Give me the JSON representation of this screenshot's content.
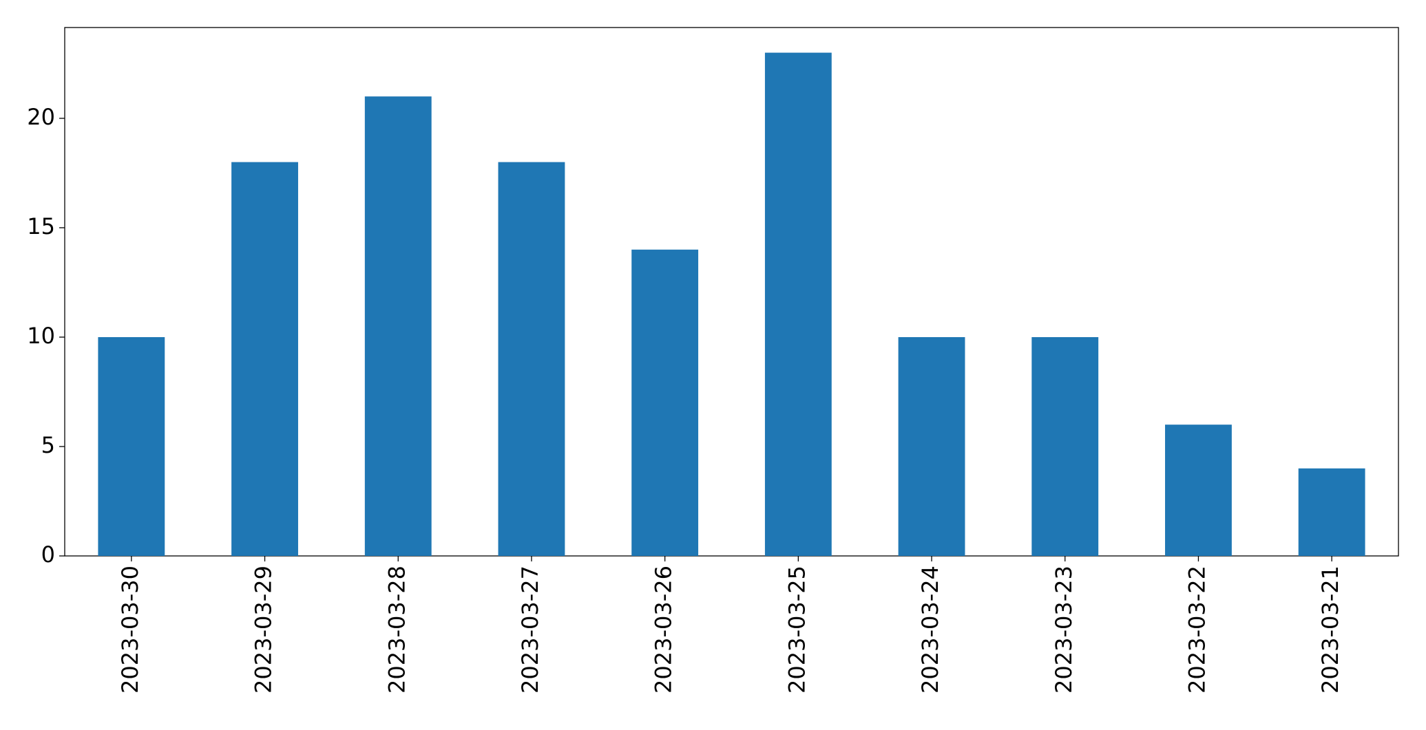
{
  "chart_data": {
    "type": "bar",
    "categories": [
      "2023-03-30",
      "2023-03-29",
      "2023-03-28",
      "2023-03-27",
      "2023-03-26",
      "2023-03-25",
      "2023-03-24",
      "2023-03-23",
      "2023-03-22",
      "2023-03-21"
    ],
    "values": [
      10,
      18,
      21,
      18,
      14,
      23,
      10,
      10,
      6,
      4
    ],
    "color": "#1f77b4",
    "ylim": [
      0,
      24.15
    ],
    "yticks": [
      0,
      5,
      10,
      15,
      20
    ],
    "grid": false
  }
}
